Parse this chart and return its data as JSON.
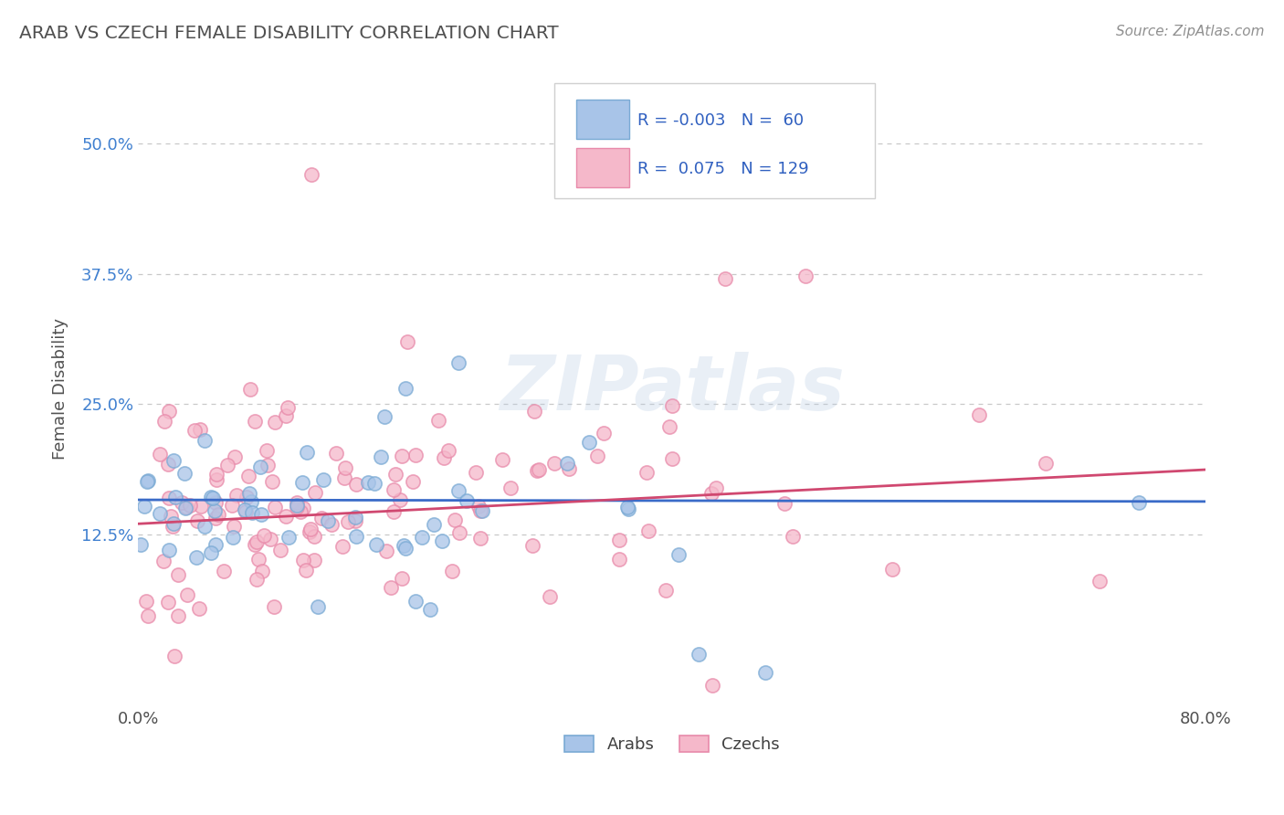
{
  "title": "ARAB VS CZECH FEMALE DISABILITY CORRELATION CHART",
  "source": "Source: ZipAtlas.com",
  "ylabel": "Female Disability",
  "xlim": [
    0.0,
    0.8
  ],
  "ylim": [
    -0.04,
    0.57
  ],
  "xticks": [
    0.0,
    0.1,
    0.2,
    0.3,
    0.4,
    0.5,
    0.6,
    0.7,
    0.8
  ],
  "xticklabels": [
    "0.0%",
    "",
    "",
    "",
    "",
    "",
    "",
    "",
    "80.0%"
  ],
  "yticks": [
    0.125,
    0.25,
    0.375,
    0.5
  ],
  "yticklabels": [
    "12.5%",
    "25.0%",
    "37.5%",
    "50.0%"
  ],
  "arab_color": "#a8c4e8",
  "arab_edge_color": "#7aaad4",
  "czech_color": "#f5b8ca",
  "czech_edge_color": "#e88aaa",
  "arab_line_color": "#3a6bc8",
  "czech_line_color": "#d04870",
  "arab_R": -0.003,
  "arab_N": 60,
  "czech_R": 0.075,
  "czech_N": 129,
  "legend_color": "#3060c0",
  "watermark": "ZIPatlas",
  "background_color": "#ffffff",
  "grid_color": "#c8c8c8",
  "title_color": "#505050",
  "source_color": "#909090",
  "ylabel_color": "#505050",
  "ytick_color": "#4080d0",
  "xtick_color": "#505050",
  "arab_intercept": 0.158,
  "arab_slope": -0.002,
  "czech_intercept": 0.135,
  "czech_slope": 0.065
}
